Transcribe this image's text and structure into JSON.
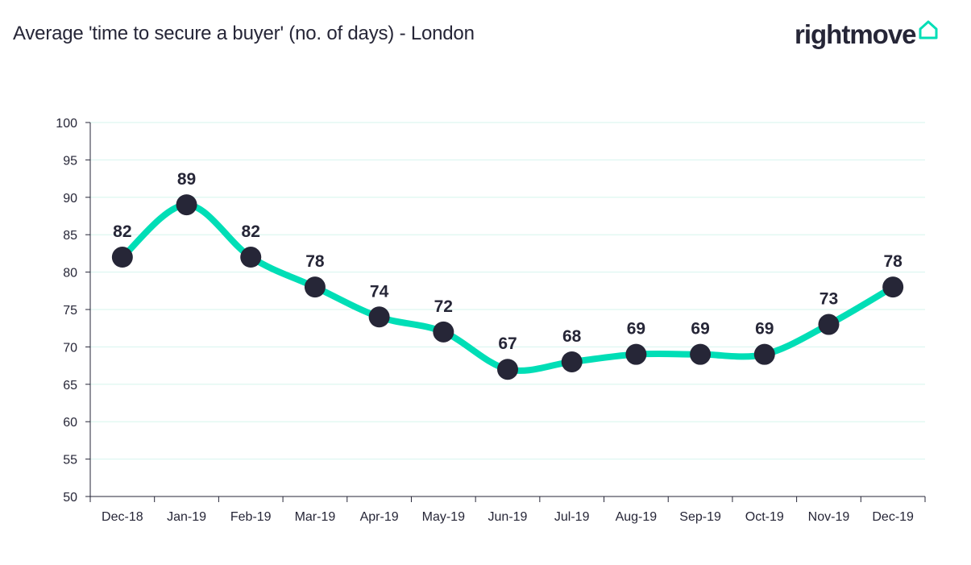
{
  "header": {
    "title": "Average 'time to secure a buyer' (no. of days) - London"
  },
  "logo": {
    "text": "rightmove",
    "icon": "house-outline-icon",
    "icon_color": "#00DEB6"
  },
  "colors": {
    "line": "#00DEB6",
    "marker": "#262637",
    "grid": "#D6F5EE",
    "axis": "#262637",
    "text": "#262637"
  },
  "chart_data": {
    "type": "line",
    "title": "Average 'time to secure a buyer' (no. of days) - London",
    "xlabel": "",
    "ylabel": "",
    "categories": [
      "Dec-18",
      "Jan-19",
      "Feb-19",
      "Mar-19",
      "Apr-19",
      "May-19",
      "Jun-19",
      "Jul-19",
      "Aug-19",
      "Sep-19",
      "Oct-19",
      "Nov-19",
      "Dec-19"
    ],
    "series": [
      {
        "values": [
          82,
          89,
          82,
          78,
          74,
          72,
          67,
          68,
          69,
          69,
          69,
          73,
          78
        ]
      }
    ],
    "ylim": [
      50,
      100
    ],
    "yticks": [
      50,
      55,
      60,
      65,
      70,
      75,
      80,
      85,
      90,
      95,
      100
    ],
    "grid": true,
    "smooth": true,
    "data_labels": true,
    "legend": "none"
  }
}
